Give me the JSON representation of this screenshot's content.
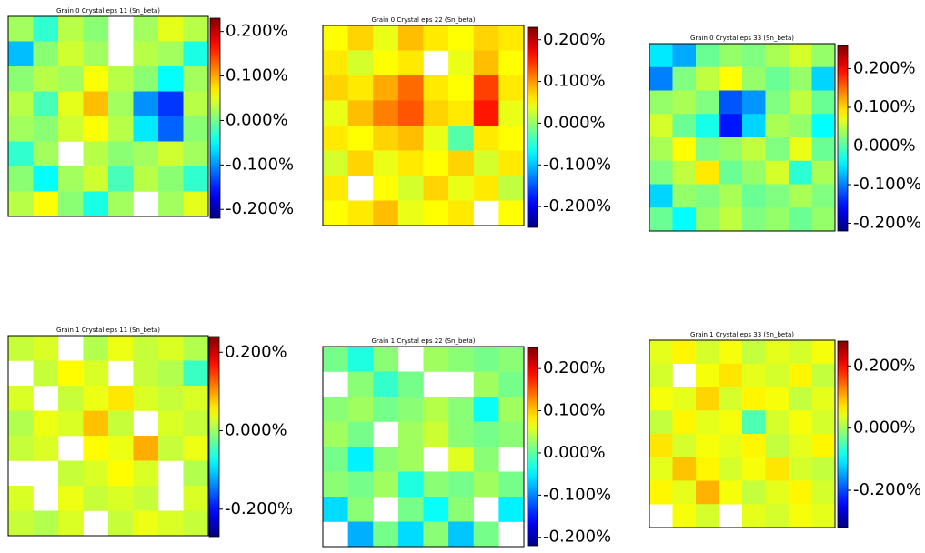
{
  "chart_data": [
    {
      "type": "heatmap",
      "title": "Grain 0 Crystal eps 11 (Sn_beta)",
      "colormap": "jet",
      "clim": [
        -0.22,
        0.23
      ],
      "cticks": [
        {
          "value": 0.2,
          "label": "0.200%"
        },
        {
          "value": 0.1,
          "label": "0.100%"
        },
        {
          "value": 0,
          "label": "0.000%"
        },
        {
          "value": -0.1,
          "label": "-0.100%"
        },
        {
          "value": -0.2,
          "label": "-0.200%"
        }
      ],
      "values": [
        [
          0.02,
          -0.03,
          0.03,
          0.01,
          null,
          0.02,
          0.05,
          0.03
        ],
        [
          -0.08,
          0.01,
          0.04,
          0.02,
          null,
          0.03,
          0.02,
          -0.04
        ],
        [
          0.01,
          0.03,
          0.02,
          0.06,
          0.03,
          0.01,
          -0.05,
          0.02
        ],
        [
          0.03,
          -0.02,
          0.05,
          0.09,
          0.02,
          -0.1,
          -0.14,
          0.03
        ],
        [
          0.02,
          0.01,
          0.04,
          0.06,
          0.03,
          -0.06,
          -0.12,
          0.01
        ],
        [
          -0.03,
          0.02,
          null,
          0.03,
          0.01,
          0.02,
          0.04,
          0.02
        ],
        [
          0.01,
          -0.05,
          0.02,
          0.04,
          -0.02,
          0.03,
          0.01,
          -0.03
        ],
        [
          0.03,
          0.06,
          0.01,
          -0.04,
          0.02,
          null,
          0.02,
          0.05
        ]
      ]
    },
    {
      "type": "heatmap",
      "title": "Grain 0 Crystal eps 22 (Sn_beta)",
      "colormap": "jet",
      "clim": [
        -0.25,
        0.23
      ],
      "cticks": [
        {
          "value": 0.2,
          "label": "0.200%"
        },
        {
          "value": 0.1,
          "label": "0.100%"
        },
        {
          "value": 0,
          "label": "0.000%"
        },
        {
          "value": -0.1,
          "label": "-0.100%"
        },
        {
          "value": -0.2,
          "label": "-0.200%"
        }
      ],
      "values": [
        [
          0.05,
          0.07,
          0.04,
          0.08,
          0.06,
          0.05,
          0.07,
          0.06
        ],
        [
          0.06,
          0.03,
          0.05,
          0.06,
          null,
          0.04,
          0.08,
          0.05
        ],
        [
          0.07,
          0.06,
          0.09,
          0.12,
          0.06,
          0.05,
          0.14,
          0.06
        ],
        [
          0.04,
          0.08,
          0.11,
          0.13,
          0.07,
          0.06,
          0.16,
          0.04
        ],
        [
          0.06,
          0.05,
          0.07,
          0.08,
          0.04,
          -0.03,
          0.06,
          0.05
        ],
        [
          0.03,
          0.07,
          0.04,
          0.06,
          0.05,
          0.07,
          0.03,
          0.06
        ],
        [
          0.06,
          null,
          0.05,
          0.03,
          0.07,
          0.04,
          0.06,
          0.02
        ],
        [
          0.05,
          0.06,
          0.08,
          0.04,
          0.05,
          0.06,
          null,
          0.05
        ]
      ]
    },
    {
      "type": "heatmap",
      "title": "Grain 0 Crystal eps 33 (Sn_beta)",
      "colormap": "jet",
      "clim": [
        -0.22,
        0.26
      ],
      "cticks": [
        {
          "value": 0.2,
          "label": "0.200%"
        },
        {
          "value": 0.1,
          "label": "0.100%"
        },
        {
          "value": 0,
          "label": "0.000%"
        },
        {
          "value": -0.1,
          "label": "-0.100%"
        },
        {
          "value": -0.2,
          "label": "-0.200%"
        }
      ],
      "values": [
        [
          -0.05,
          -0.08,
          0.01,
          0.03,
          0.02,
          0.04,
          0.06,
          0.03
        ],
        [
          -0.1,
          0.02,
          0.05,
          0.08,
          0.03,
          0.01,
          0.03,
          -0.06
        ],
        [
          0.03,
          0.04,
          0.02,
          -0.12,
          -0.09,
          0.02,
          0.05,
          0.01
        ],
        [
          0.06,
          0.01,
          -0.03,
          -0.15,
          -0.06,
          0.04,
          0.03,
          -0.04
        ],
        [
          0.04,
          0.08,
          0.02,
          0.03,
          0.05,
          0.02,
          0.07,
          0.01
        ],
        [
          0.02,
          0.05,
          0.09,
          0.01,
          0.03,
          0.06,
          -0.02,
          0.04
        ],
        [
          -0.06,
          0.03,
          0.02,
          0.04,
          0.01,
          0.02,
          0.04,
          0.02
        ],
        [
          0.01,
          -0.04,
          0.03,
          0.05,
          0.02,
          0.03,
          0.01,
          0.03
        ]
      ]
    },
    {
      "type": "heatmap",
      "title": "Grain 1 Crystal eps 11 (Sn_beta)",
      "colormap": "jet",
      "clim": [
        -0.27,
        0.24
      ],
      "cticks": [
        {
          "value": 0.2,
          "label": "0.200%"
        },
        {
          "value": 0,
          "label": "0.000%"
        },
        {
          "value": -0.2,
          "label": "-0.200%"
        }
      ],
      "values": [
        [
          0.02,
          0.03,
          null,
          0.01,
          0.04,
          0.02,
          0.03,
          0.01
        ],
        [
          null,
          0.02,
          0.05,
          0.03,
          null,
          0.02,
          0.01,
          -0.05
        ],
        [
          0.03,
          null,
          0.02,
          0.04,
          0.06,
          0.03,
          0.02,
          0.03
        ],
        [
          0.01,
          0.04,
          0.03,
          0.08,
          0.02,
          null,
          0.03,
          0.02
        ],
        [
          0.02,
          0.03,
          null,
          0.05,
          0.04,
          0.09,
          0.02,
          0.04
        ],
        [
          null,
          null,
          0.02,
          0.03,
          0.05,
          0.03,
          null,
          0.01
        ],
        [
          0.03,
          null,
          0.04,
          0.02,
          0.03,
          0.02,
          null,
          0.03
        ],
        [
          0.02,
          0.01,
          0.03,
          null,
          0.02,
          0.04,
          0.03,
          0.02
        ]
      ]
    },
    {
      "type": "heatmap",
      "title": "Grain 1 Crystal eps 22 (Sn_beta)",
      "colormap": "jet",
      "clim": [
        -0.22,
        0.25
      ],
      "cticks": [
        {
          "value": 0.2,
          "label": "0.200%"
        },
        {
          "value": 0.1,
          "label": "0.100%"
        },
        {
          "value": 0,
          "label": "0.000%"
        },
        {
          "value": -0.1,
          "label": "-0.100%"
        },
        {
          "value": -0.2,
          "label": "-0.200%"
        }
      ],
      "values": [
        [
          0.01,
          -0.03,
          0.02,
          null,
          0.03,
          0.02,
          0.01,
          0.02
        ],
        [
          null,
          0.02,
          -0.02,
          0.01,
          null,
          null,
          0.03,
          0.01
        ],
        [
          0.02,
          0.03,
          0.01,
          0.02,
          0.04,
          0.02,
          -0.04,
          0.03
        ],
        [
          0.03,
          0.01,
          null,
          0.03,
          0.05,
          0.02,
          0.01,
          0.02
        ],
        [
          0.01,
          -0.05,
          0.02,
          0.03,
          null,
          0.06,
          0.02,
          null
        ],
        [
          0.02,
          0.01,
          0.03,
          -0.03,
          0.02,
          0.01,
          0.03,
          0.01
        ],
        [
          -0.06,
          0.02,
          null,
          0.01,
          -0.04,
          0.02,
          null,
          -0.05
        ],
        [
          null,
          -0.08,
          0.01,
          -0.06,
          0.02,
          -0.07,
          0.01,
          null
        ]
      ]
    },
    {
      "type": "heatmap",
      "title": "Grain 1 Crystal eps 33 (Sn_beta)",
      "colormap": "jet",
      "clim": [
        -0.32,
        0.28
      ],
      "cticks": [
        {
          "value": 0.2,
          "label": "0.200%"
        },
        {
          "value": 0,
          "label": "0.000%"
        },
        {
          "value": -0.2,
          "label": "-0.200%"
        }
      ],
      "values": [
        [
          0.04,
          0.06,
          0.03,
          0.05,
          0.02,
          0.04,
          0.03,
          0.05
        ],
        [
          0.03,
          null,
          0.05,
          0.07,
          0.04,
          0.03,
          0.06,
          0.02
        ],
        [
          0.05,
          0.04,
          0.08,
          0.03,
          0.06,
          0.05,
          0.02,
          0.04
        ],
        [
          0.02,
          0.06,
          0.04,
          0.05,
          -0.05,
          0.03,
          0.05,
          0.03
        ],
        [
          0.07,
          0.03,
          0.05,
          0.04,
          0.06,
          0.02,
          0.04,
          0.06
        ],
        [
          0.04,
          0.09,
          0.06,
          0.03,
          0.05,
          0.07,
          0.03,
          0.02
        ],
        [
          0.06,
          0.04,
          0.1,
          0.05,
          0.02,
          0.04,
          0.06,
          0.03
        ],
        [
          null,
          0.05,
          0.03,
          null,
          0.04,
          0.03,
          0.05,
          0.04
        ]
      ]
    }
  ]
}
